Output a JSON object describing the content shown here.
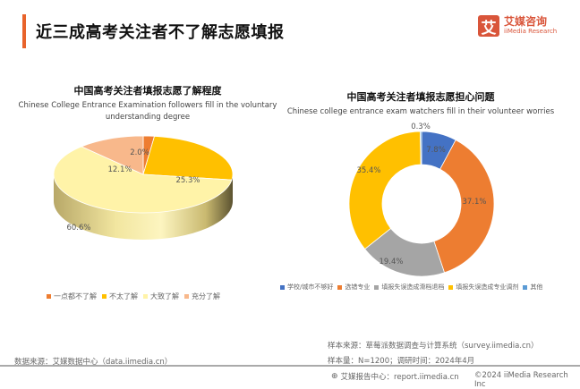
{
  "header": {
    "title": "近三成高考关注者不了解志愿填报",
    "logo_mark": "艾",
    "logo_cn": "艾媒咨询",
    "logo_en": "iiMedia Research"
  },
  "left_chart": {
    "title": "中国高考关注者填报志愿了解程度",
    "subtitle_line1": "Chinese College Entrance Examination followers fill in the voluntary",
    "subtitle_line2": "understanding degree"
  },
  "right_chart": {
    "title": "中国高考关注者填报志愿担心问题",
    "subtitle": "Chinese college entrance exam watchers fill in their volunteer worries"
  },
  "chart_data": [
    {
      "type": "pie",
      "title": "中国高考关注者填报志愿了解程度",
      "subtitle": "Chinese College Entrance Examination followers fill in the voluntary understanding degree",
      "categories": [
        "一点都不了解",
        "不太了解",
        "大致了解",
        "充分了解"
      ],
      "values": [
        2.0,
        25.3,
        60.6,
        12.1
      ],
      "labels": [
        "2.0%",
        "25.3%",
        "60.6%",
        "12.1%"
      ],
      "colors": [
        "#ee7d31",
        "#ffc000",
        "#fff3a8",
        "#f8b88b"
      ],
      "legend_position": "bottom",
      "style": "3d"
    },
    {
      "type": "pie",
      "style": "donut",
      "title": "中国高考关注者填报志愿担心问题",
      "subtitle": "Chinese college entrance exam watchers fill in their volunteer worries",
      "categories": [
        "学校/城市不够好",
        "选错专业",
        "填报失误造成滑档退档",
        "填报失误造成专业调剂",
        "其他"
      ],
      "values": [
        7.8,
        37.1,
        19.4,
        35.4,
        0.3
      ],
      "labels": [
        "7.8%",
        "37.1%",
        "19.4%",
        "35.4%",
        "0.3%"
      ],
      "colors": [
        "#4472c4",
        "#ed7d31",
        "#a5a5a5",
        "#ffc000",
        "#5b9bd5"
      ],
      "legend_position": "bottom"
    }
  ],
  "footer": {
    "data_source": "数据来源：艾媒数据中心（data.iimedia.cn）",
    "sample_source": "样本来源：草莓派数据调查与计算系统（survey.iimedia.cn）",
    "sample_size": "样本量：N=1200；调研时间：2024年4月",
    "report_center": "艾媒报告中心：report.iimedia.cn",
    "copyright": "©2024  iiMedia Research  Inc"
  }
}
